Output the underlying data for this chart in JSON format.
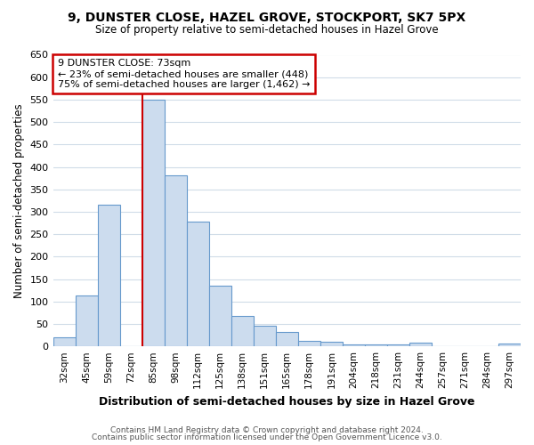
{
  "title_line1": "9, DUNSTER CLOSE, HAZEL GROVE, STOCKPORT, SK7 5PX",
  "title_line2": "Size of property relative to semi-detached houses in Hazel Grove",
  "categories": [
    "32sqm",
    "45sqm",
    "59sqm",
    "72sqm",
    "85sqm",
    "98sqm",
    "112sqm",
    "125sqm",
    "138sqm",
    "151sqm",
    "165sqm",
    "178sqm",
    "191sqm",
    "204sqm",
    "218sqm",
    "231sqm",
    "244sqm",
    "257sqm",
    "271sqm",
    "284sqm",
    "297sqm"
  ],
  "values": [
    20,
    113,
    315,
    0,
    550,
    382,
    278,
    136,
    68,
    46,
    33,
    13,
    10,
    4,
    4,
    4,
    8,
    0,
    0,
    0,
    6
  ],
  "bar_color": "#ccdcee",
  "bar_edge_color": "#6699cc",
  "ylabel": "Number of semi-detached properties",
  "xlabel": "Distribution of semi-detached houses by size in Hazel Grove",
  "ylim": [
    0,
    650
  ],
  "yticks": [
    0,
    50,
    100,
    150,
    200,
    250,
    300,
    350,
    400,
    450,
    500,
    550,
    600,
    650
  ],
  "annotation_title": "9 DUNSTER CLOSE: 73sqm",
  "annotation_line2": "← 23% of semi-detached houses are smaller (448)",
  "annotation_line3": "75% of semi-detached houses are larger (1,462) →",
  "vline_x": 3.5,
  "footer_line1": "Contains HM Land Registry data © Crown copyright and database right 2024.",
  "footer_line2": "Contains public sector information licensed under the Open Government Licence v3.0.",
  "background_color": "#ffffff",
  "grid_color": "#d0dce8",
  "annotation_box_color": "#ffffff",
  "annotation_box_edge": "#cc0000",
  "vline_color": "#cc0000"
}
